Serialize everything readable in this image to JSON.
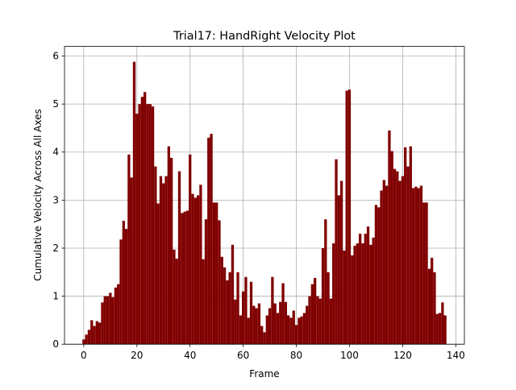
{
  "chart_data": {
    "type": "bar",
    "title": "Trial17: HandRight Velocity Plot",
    "xlabel": "Frame",
    "ylabel": "Cumulative Velocity Across All Axes",
    "color": "#800000",
    "grid": true,
    "x": [
      0,
      1,
      2,
      3,
      4,
      5,
      6,
      7,
      8,
      9,
      10,
      11,
      12,
      13,
      14,
      15,
      16,
      17,
      18,
      19,
      20,
      21,
      22,
      23,
      24,
      25,
      26,
      27,
      28,
      29,
      30,
      31,
      32,
      33,
      34,
      35,
      36,
      37,
      38,
      39,
      40,
      41,
      42,
      43,
      44,
      45,
      46,
      47,
      48,
      49,
      50,
      51,
      52,
      53,
      54,
      55,
      56,
      57,
      58,
      59,
      60,
      61,
      62,
      63,
      64,
      65,
      66,
      67,
      68,
      69,
      70,
      71,
      72,
      73,
      74,
      75,
      76,
      77,
      78,
      79,
      80,
      81,
      82,
      83,
      84,
      85,
      86,
      87,
      88,
      89,
      90,
      91,
      92,
      93,
      94,
      95,
      96,
      97,
      98,
      99,
      100,
      101,
      102,
      103,
      104,
      105,
      106,
      107,
      108,
      109,
      110,
      111,
      112,
      113,
      114,
      115,
      116,
      117,
      118,
      119,
      120,
      121,
      122,
      123,
      124,
      125,
      126,
      127,
      128,
      129,
      130,
      131,
      132,
      133,
      134,
      135,
      136
    ],
    "values": [
      0.1,
      0.2,
      0.3,
      0.5,
      0.38,
      0.48,
      0.45,
      0.87,
      1.0,
      1.0,
      1.07,
      0.98,
      1.18,
      1.25,
      2.18,
      2.57,
      2.4,
      3.95,
      3.47,
      5.88,
      4.8,
      5.0,
      5.15,
      5.25,
      5.0,
      5.0,
      4.95,
      3.7,
      2.93,
      3.5,
      3.35,
      3.5,
      4.12,
      3.88,
      1.97,
      1.78,
      3.6,
      2.73,
      2.76,
      2.78,
      3.95,
      3.13,
      3.05,
      3.1,
      3.32,
      1.77,
      2.6,
      4.3,
      4.38,
      2.95,
      2.95,
      2.58,
      1.82,
      1.6,
      1.33,
      1.5,
      2.07,
      0.93,
      1.5,
      0.6,
      1.1,
      1.4,
      0.55,
      1.3,
      0.8,
      0.75,
      0.85,
      0.38,
      0.25,
      0.6,
      0.75,
      1.4,
      0.85,
      0.65,
      0.88,
      1.27,
      0.88,
      0.6,
      0.55,
      0.7,
      0.4,
      0.55,
      0.58,
      0.65,
      0.8,
      1.0,
      1.25,
      1.38,
      1.0,
      0.95,
      2.0,
      2.6,
      1.5,
      0.95,
      2.1,
      3.85,
      3.1,
      3.4,
      1.95,
      5.28,
      5.3,
      1.85,
      2.05,
      2.1,
      2.3,
      2.1,
      2.3,
      2.45,
      2.07,
      2.22,
      2.9,
      2.85,
      3.2,
      3.42,
      3.3,
      4.45,
      4.02,
      3.65,
      3.6,
      3.4,
      3.5,
      4.1,
      3.7,
      4.12,
      3.25,
      3.28,
      3.25,
      3.3,
      2.95,
      2.95,
      1.57,
      1.8,
      1.5,
      0.63,
      0.65,
      0.87,
      0.6
    ],
    "xlim": [
      -7.24,
      143.24
    ],
    "ylim": [
      0,
      6.2
    ],
    "xticks": [
      0,
      20,
      40,
      60,
      80,
      100,
      120,
      140
    ],
    "yticks": [
      0,
      1,
      2,
      3,
      4,
      5,
      6
    ]
  }
}
